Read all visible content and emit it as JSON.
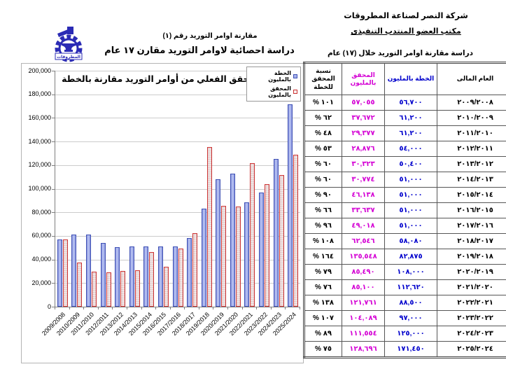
{
  "header_left": {
    "logo_banner": "المطروقات",
    "title_line1": "مقارنة اوامر التوريد رقم (١)",
    "title_line2": "دراسة احصائية لاوامر التوريد مقارن ١٧ عام"
  },
  "header_right": {
    "company": "شركة النصر لصناعة المطروقات",
    "office": "مكتب العضو المنتدب التنفيذى"
  },
  "table": {
    "title": "دراسة مقارنة اوامر التوريد خلال (١٧) عام",
    "columns": {
      "year": "العام المالى",
      "plan": "الخطة بالمليون",
      "actual": "المحقق بالمليون",
      "pct": "نسبة المحقق للخطة"
    },
    "colors": {
      "plan_text": "#0000cc",
      "actual_text": "#d400d4"
    },
    "rows": [
      {
        "year": "٢٠٠٩/٢٠٠٨",
        "plan": "٥٦,٧٠٠",
        "actual": "٥٧,٠٥٥",
        "pct": "% ١٠١"
      },
      {
        "year": "٢٠١٠/٢٠٠٩",
        "plan": "٦١,٢٠٠",
        "actual": "٣٧,٦٧٢",
        "pct": "% ٦٢"
      },
      {
        "year": "٢٠١١/٢٠١٠",
        "plan": "٦١,٢٠٠",
        "actual": "٢٩,٣٧٧",
        "pct": "% ٤٨"
      },
      {
        "year": "٢٠١٢/٢٠١١",
        "plan": "٥٤,٠٠٠",
        "actual": "٢٨,٨٧٦",
        "pct": "% ٥٣"
      },
      {
        "year": "٢٠١٣/٢٠١٢",
        "plan": "٥٠,٤٠٠",
        "actual": "٣٠,٣٢٣",
        "pct": "% ٦٠"
      },
      {
        "year": "٢٠١٤/٢٠١٣",
        "plan": "٥١,٠٠٠",
        "actual": "٣٠,٧٧٤",
        "pct": "% ٦٠"
      },
      {
        "year": "٢٠١٥/٢٠١٤",
        "plan": "٥١,٠٠٠",
        "actual": "٤٦,١٣٨",
        "pct": "% ٩٠"
      },
      {
        "year": "٢٠١٦/٢٠١٥",
        "plan": "٥١,٠٠٠",
        "actual": "٣٣,٦٣٧",
        "pct": "% ٦٦"
      },
      {
        "year": "٢٠١٧/٢٠١٦",
        "plan": "٥١,٠٠٠",
        "actual": "٤٩,٠١٨",
        "pct": "% ٩٦"
      },
      {
        "year": "٢٠١٨/٢٠١٧",
        "plan": "٥٨,٠٨٠",
        "actual": "٦٢,٥٤٦",
        "pct": "% ١٠٨"
      },
      {
        "year": "٢٠١٩/٢٠١٨",
        "plan": "٨٢,٨٧٥",
        "actual": "١٣٥,٥٤٨",
        "pct": "% ١٦٤"
      },
      {
        "year": "٢٠٢٠/٢٠١٩",
        "plan": "١٠٨,٠٠٠",
        "actual": "٨٥,٤٩٠",
        "pct": "% ٧٩"
      },
      {
        "year": "٢٠٢١/٢٠٢٠",
        "plan": "١١٢,٦٢٠",
        "actual": "٨٥,١٠٠",
        "pct": "% ٧٦"
      },
      {
        "year": "٢٠٢٢/٢٠٢١",
        "plan": "٨٨,٥٠٠",
        "actual": "١٢١,٧٦١",
        "pct": "% ١٣٨"
      },
      {
        "year": "٢٠٢٣/٢٠٢٢",
        "plan": "٩٧,٠٠٠",
        "actual": "١٠٤,٠٨٩",
        "pct": "% ١٠٧"
      },
      {
        "year": "٢٠٢٤/٢٠٢٣",
        "plan": "١٢٥,٠٠٠",
        "actual": "١١١,٥٥٤",
        "pct": "% ٨٩"
      },
      {
        "year": "٢٠٢٥/٢٠٢٤",
        "plan": "١٧١,٤٥٠",
        "actual": "١٢٨,٦٩٦",
        "pct": "% ٧٥"
      }
    ]
  },
  "chart_data": {
    "type": "bar",
    "title": "المحقق الفعلي من أوامر التوريد مقارنة بالخطة",
    "categories": [
      "2009/2008",
      "2010/2009",
      "2011/2010",
      "2012/2011",
      "2013/2012",
      "2014/2013",
      "2015/2014",
      "2016/2015",
      "2017/2016",
      "2018/2017",
      "2019/2018",
      "2020/2019",
      "2021/2020",
      "2022/2021",
      "2023/2022",
      "2024/2023",
      "2025/2024"
    ],
    "series": [
      {
        "name": "الخطة بالمليون",
        "color_fill": "#a8b2ec",
        "color_border": "#3f51b5",
        "values": [
          56700,
          61200,
          61200,
          54000,
          50400,
          51000,
          51000,
          51000,
          51000,
          58080,
          82875,
          108000,
          112620,
          88500,
          97000,
          125000,
          171450
        ]
      },
      {
        "name": "المحقق بالمليون",
        "color_fill": "#f7f0f0",
        "color_border": "#cc3333",
        "values": [
          57055,
          37672,
          29377,
          28876,
          30323,
          30774,
          46138,
          33637,
          49018,
          62546,
          135548,
          85490,
          85100,
          121761,
          104089,
          111554,
          128696
        ]
      }
    ],
    "ylim": [
      0,
      200000
    ],
    "ytick_step": 20000,
    "ytick_labels": [
      "0",
      "20,000",
      "40,000",
      "60,000",
      "80,000",
      "100,000",
      "120,000",
      "140,000",
      "160,000",
      "180,000",
      "200,000"
    ],
    "grid": true,
    "legend_position": "top-right"
  }
}
